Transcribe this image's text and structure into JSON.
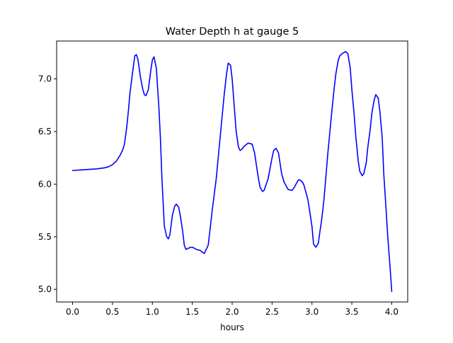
{
  "chart_data": {
    "type": "line",
    "title": "Water Depth h at gauge 5",
    "xlabel": "hours",
    "ylabel": "",
    "xlim": [
      -0.2,
      4.2
    ],
    "ylim": [
      4.88,
      7.36
    ],
    "x_ticks": [
      0.0,
      0.5,
      1.0,
      1.5,
      2.0,
      2.5,
      3.0,
      3.5,
      4.0
    ],
    "x_tick_labels": [
      "0.0",
      "0.5",
      "1.0",
      "1.5",
      "2.0",
      "2.5",
      "3.0",
      "3.5",
      "4.0"
    ],
    "y_ticks": [
      5.0,
      5.5,
      6.0,
      6.5,
      7.0
    ],
    "y_tick_labels": [
      "5.0",
      "5.5",
      "6.0",
      "6.5",
      "7.0"
    ],
    "grid": false,
    "legend": "none",
    "series": [
      {
        "color": "#0000ff",
        "x": [
          0.0,
          0.1,
          0.2,
          0.3,
          0.4,
          0.45,
          0.5,
          0.55,
          0.6,
          0.63,
          0.65,
          0.68,
          0.7,
          0.72,
          0.75,
          0.78,
          0.8,
          0.82,
          0.85,
          0.88,
          0.9,
          0.92,
          0.95,
          0.98,
          1.0,
          1.02,
          1.05,
          1.08,
          1.1,
          1.12,
          1.15,
          1.18,
          1.2,
          1.22,
          1.25,
          1.28,
          1.3,
          1.33,
          1.35,
          1.38,
          1.4,
          1.42,
          1.45,
          1.48,
          1.5,
          1.53,
          1.55,
          1.6,
          1.65,
          1.7,
          1.72,
          1.75,
          1.8,
          1.85,
          1.9,
          1.93,
          1.95,
          1.98,
          2.0,
          2.02,
          2.05,
          2.08,
          2.1,
          2.12,
          2.15,
          2.2,
          2.25,
          2.28,
          2.3,
          2.33,
          2.35,
          2.38,
          2.4,
          2.45,
          2.5,
          2.52,
          2.55,
          2.58,
          2.6,
          2.62,
          2.65,
          2.7,
          2.75,
          2.78,
          2.8,
          2.83,
          2.85,
          2.88,
          2.9,
          2.95,
          3.0,
          3.02,
          3.05,
          3.08,
          3.1,
          3.12,
          3.15,
          3.2,
          3.25,
          3.28,
          3.3,
          3.33,
          3.35,
          3.38,
          3.4,
          3.42,
          3.45,
          3.48,
          3.5,
          3.53,
          3.55,
          3.58,
          3.6,
          3.63,
          3.65,
          3.68,
          3.7,
          3.73,
          3.75,
          3.78,
          3.8,
          3.83,
          3.85,
          3.88,
          3.9,
          3.93,
          3.95,
          3.98,
          4.0
        ],
        "y": [
          6.13,
          6.135,
          6.14,
          6.145,
          6.155,
          6.165,
          6.185,
          6.22,
          6.28,
          6.33,
          6.38,
          6.55,
          6.7,
          6.87,
          7.05,
          7.22,
          7.23,
          7.18,
          7.02,
          6.9,
          6.85,
          6.84,
          6.9,
          7.08,
          7.18,
          7.21,
          7.1,
          6.75,
          6.45,
          6.05,
          5.6,
          5.5,
          5.48,
          5.52,
          5.7,
          5.79,
          5.81,
          5.78,
          5.7,
          5.55,
          5.42,
          5.38,
          5.39,
          5.4,
          5.4,
          5.39,
          5.38,
          5.37,
          5.34,
          5.42,
          5.55,
          5.75,
          6.05,
          6.45,
          6.85,
          7.05,
          7.15,
          7.13,
          7.0,
          6.8,
          6.5,
          6.35,
          6.32,
          6.33,
          6.36,
          6.39,
          6.38,
          6.3,
          6.2,
          6.05,
          5.97,
          5.93,
          5.94,
          6.05,
          6.25,
          6.32,
          6.34,
          6.3,
          6.2,
          6.1,
          6.02,
          5.95,
          5.94,
          5.97,
          6.0,
          6.04,
          6.04,
          6.02,
          5.99,
          5.85,
          5.6,
          5.43,
          5.4,
          5.44,
          5.55,
          5.65,
          5.85,
          6.3,
          6.7,
          6.92,
          7.05,
          7.18,
          7.22,
          7.24,
          7.25,
          7.26,
          7.24,
          7.1,
          6.9,
          6.65,
          6.45,
          6.22,
          6.12,
          6.08,
          6.1,
          6.2,
          6.35,
          6.52,
          6.67,
          6.8,
          6.85,
          6.82,
          6.7,
          6.45,
          6.1,
          5.75,
          5.5,
          5.2,
          4.98
        ]
      }
    ]
  }
}
